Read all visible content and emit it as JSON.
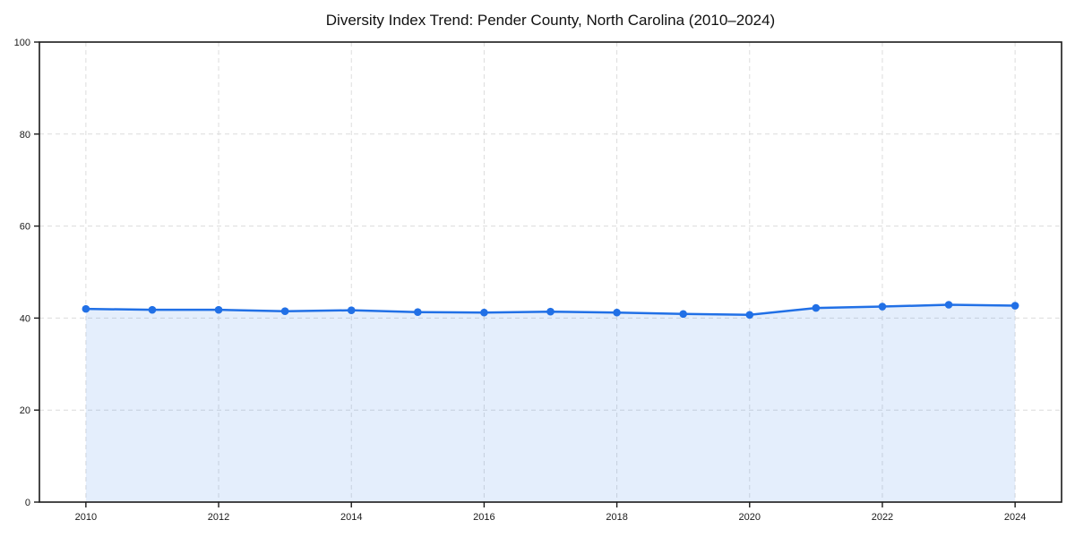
{
  "page": {
    "background": "#ffffff"
  },
  "chart_data": {
    "type": "line",
    "title": "Diversity Index Trend: Pender County, North Carolina (2010–2024)",
    "x": [
      2010,
      2011,
      2012,
      2013,
      2014,
      2015,
      2016,
      2017,
      2018,
      2019,
      2020,
      2021,
      2022,
      2023,
      2024
    ],
    "series": [
      {
        "name": "Diversity Index",
        "values": [
          42.0,
          41.8,
          41.8,
          41.5,
          41.7,
          41.3,
          41.2,
          41.4,
          41.2,
          40.9,
          40.7,
          42.2,
          42.5,
          42.9,
          42.7
        ]
      }
    ],
    "xlabel": "",
    "ylabel": "",
    "xlim": [
      2009.3,
      2024.7
    ],
    "ylim": [
      0,
      100
    ],
    "xticks": [
      2010,
      2012,
      2014,
      2016,
      2018,
      2020,
      2022,
      2024
    ],
    "yticks": [
      0,
      20,
      40,
      60,
      80,
      100
    ],
    "grid": true,
    "grid_style": "dashed",
    "legend": "none",
    "colors": {
      "line": "#2170e6",
      "marker": "#2170e6",
      "fill": "#2170e6",
      "fill_opacity": 0.12,
      "grid": "#dcdcdc",
      "spine": "#1a1a1a",
      "tick_text": "#1a1a1a"
    }
  }
}
